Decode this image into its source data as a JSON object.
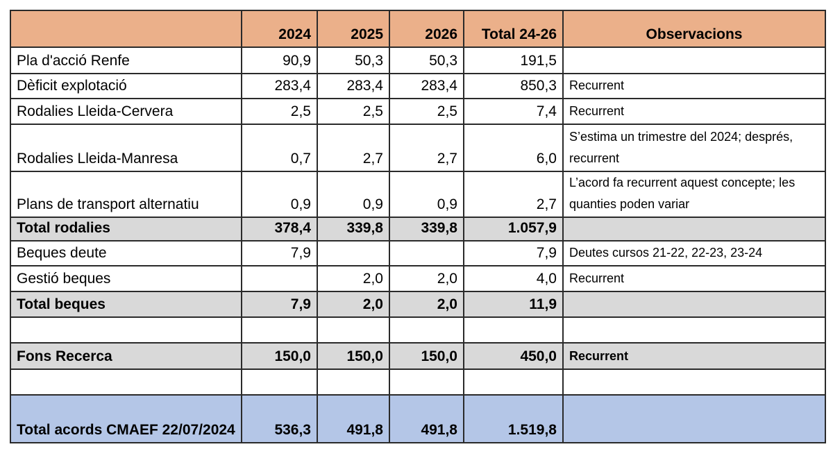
{
  "header": {
    "label": "",
    "y2024": "2024",
    "y2025": "2025",
    "y2026": "2026",
    "total": "Total 24-26",
    "obs": "Observacions"
  },
  "rows": [
    {
      "label": "Pla d'acció Renfe",
      "y2024": "90,9",
      "y2025": "50,3",
      "y2026": "50,3",
      "total": "191,5",
      "obs": ""
    },
    {
      "label": "Dèficit explotació",
      "y2024": "283,4",
      "y2025": "283,4",
      "y2026": "283,4",
      "total": "850,3",
      "obs": "Recurrent"
    },
    {
      "label": "Rodalies Lleida-Cervera",
      "y2024": "2,5",
      "y2025": "2,5",
      "y2026": "2,5",
      "total": "7,4",
      "obs": "Recurrent"
    },
    {
      "label": "Rodalies Lleida-Manresa",
      "y2024": "0,7",
      "y2025": "2,7",
      "y2026": "2,7",
      "total": "6,0",
      "obs": "S’estima un trimestre del 2024; després, recurrent"
    },
    {
      "label": "Plans de transport alternatiu",
      "y2024": "0,9",
      "y2025": "0,9",
      "y2026": "0,9",
      "total": "2,7",
      "obs": "L’acord fa recurrent aquest concepte; les quanties poden variar"
    },
    {
      "label": "Total rodalies",
      "y2024": "378,4",
      "y2025": "339,8",
      "y2026": "339,8",
      "total": "1.057,9",
      "obs": ""
    },
    {
      "label": "Beques deute",
      "y2024": "7,9",
      "y2025": "",
      "y2026": "",
      "total": "7,9",
      "obs": "Deutes cursos 21-22, 22-23, 23-24"
    },
    {
      "label": "Gestió beques",
      "y2024": "",
      "y2025": "2,0",
      "y2026": "2,0",
      "total": "4,0",
      "obs": "Recurrent"
    },
    {
      "label": "Total beques",
      "y2024": "7,9",
      "y2025": "2,0",
      "y2026": "2,0",
      "total": "11,9",
      "obs": ""
    },
    {
      "label": "",
      "y2024": "",
      "y2025": "",
      "y2026": "",
      "total": "",
      "obs": ""
    },
    {
      "label": "Fons Recerca",
      "y2024": "150,0",
      "y2025": "150,0",
      "y2026": "150,0",
      "total": "450,0",
      "obs": "Recurrent"
    },
    {
      "label": "",
      "y2024": "",
      "y2025": "",
      "y2026": "",
      "total": "",
      "obs": ""
    },
    {
      "label": "Total acords CMAEF 22/07/2024",
      "y2024": "536,3",
      "y2025": "491,8",
      "y2026": "491,8",
      "total": "1.519,8",
      "obs": ""
    }
  ],
  "row_styles": [
    "normal",
    "normal",
    "normal",
    "normal",
    "normal",
    "total",
    "normal",
    "normal",
    "total",
    "normal",
    "total",
    "normal",
    "grand"
  ],
  "colors": {
    "header": "#EBB08A",
    "subtotal": "#D9D9D9",
    "grand_total": "#B4C6E7"
  }
}
